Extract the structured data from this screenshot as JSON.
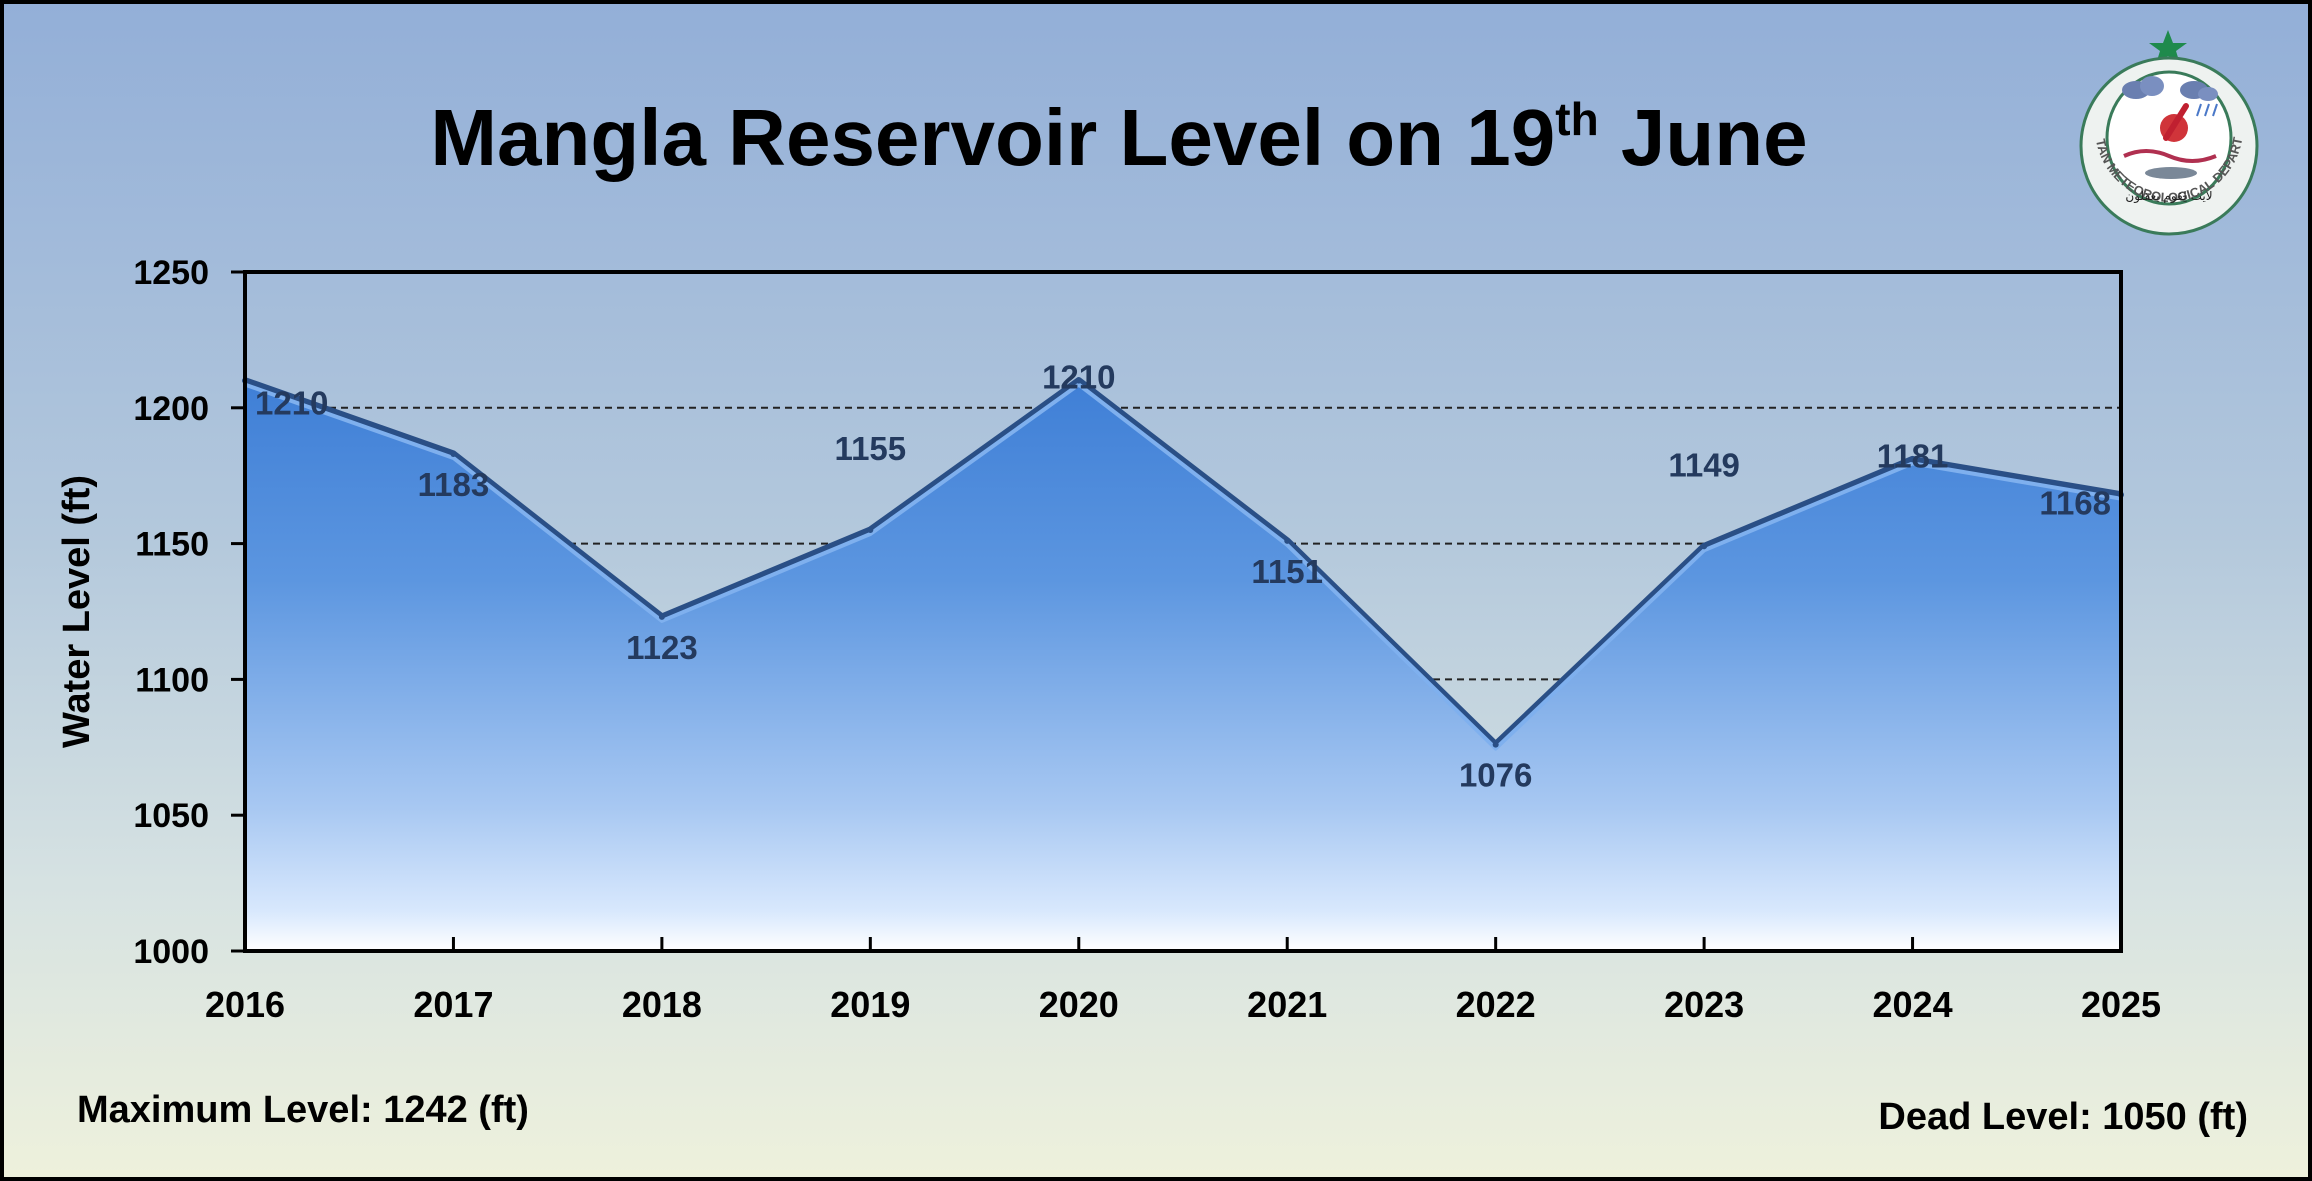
{
  "title": {
    "main": "Mangla Reservoir Level on 19",
    "sup": "th",
    "rest": " June"
  },
  "footer": {
    "max_level": "Maximum Level: 1242 (ft)",
    "dead_level": "Dead Level: 1050 (ft)"
  },
  "logo": {
    "name": "PAKISTAN METEOROLOGICAL DEPARTMENT",
    "motto": "لایت لِقوم یعقلون"
  },
  "colors": {
    "area_top": "#4a86d8",
    "area_bottom": "#e8f0ff",
    "label": "#243a5e",
    "frame": "#000000"
  },
  "chart_data": {
    "type": "area",
    "x": [
      2016,
      2017,
      2018,
      2019,
      2020,
      2021,
      2022,
      2023,
      2024,
      2025
    ],
    "values": [
      1210,
      1183,
      1123,
      1155,
      1210,
      1151,
      1076,
      1149,
      1181,
      1168
    ],
    "xlabel": "",
    "ylabel": "Water Level (ft)",
    "ylim": [
      1000,
      1250
    ],
    "yticks": [
      1000,
      1050,
      1100,
      1150,
      1200,
      1250
    ],
    "grid": "horizontal dashed",
    "data_labels": true
  }
}
